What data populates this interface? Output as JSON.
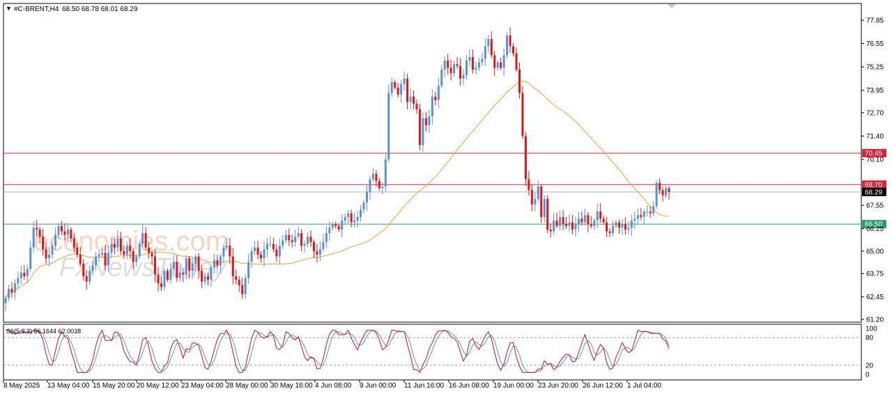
{
  "header": {
    "title_marker": "▼",
    "symbol": "#C-BRENT,H4",
    "ohlc": "68.50 68.78 68.01 68.29"
  },
  "watermark": {
    "line1": "economies.com",
    "line2": "FxNewsToday"
  },
  "colors": {
    "bull": "#5b8fd6",
    "bear": "#e01515",
    "ma": "#f0a030",
    "resistance": "#d6273a",
    "support": "#2f9e6e",
    "price_tag": "#000000",
    "stoch_main": "#d01010",
    "stoch_signal": "#5b8fd6"
  },
  "chart_data": [
    {
      "type": "candlestick",
      "symbol": "#C-BRENT",
      "timeframe": "H4",
      "last": {
        "open": 68.5,
        "high": 68.78,
        "low": 68.01,
        "close": 68.29
      },
      "y_ticks": [
        "77.85",
        "76.55",
        "75.25",
        "73.95",
        "72.70",
        "71.40",
        "70.10",
        "67.55",
        "66.25",
        "65.00",
        "63.75",
        "62.45",
        "61.20"
      ],
      "ylim": [
        61.2,
        77.85
      ],
      "x_ticks": [
        "8 May 2025",
        "13 May 04:00",
        "15 May 20:00",
        "20 May 12:00",
        "23 May 04:00",
        "28 May 00:00",
        "30 May 16:00",
        "4 Jun 08:00",
        "9 Jun 00:00",
        "11 Jun 16:00",
        "16 Jun 08:00",
        "19 Jun 00:00",
        "23 Jun 20:00",
        "26 Jun 12:00",
        "1 Jul 04:00"
      ],
      "levels": [
        {
          "label": "70.45",
          "value": 70.45,
          "color_key": "resistance"
        },
        {
          "label": "68.70",
          "value": 68.7,
          "color_key": "resistance"
        },
        {
          "label": "66.50",
          "value": 66.5,
          "color_key": "support"
        }
      ],
      "price_label": {
        "label": "68.29",
        "value": 68.29
      },
      "closes": [
        62.4,
        62.9,
        62.7,
        63.2,
        63.5,
        63.8,
        63.6,
        64.0,
        65.2,
        66.3,
        66.2,
        65.8,
        65.1,
        64.6,
        64.8,
        65.3,
        65.9,
        66.4,
        66.1,
        65.9,
        66.2,
        65.7,
        65.2,
        64.8,
        64.3,
        63.6,
        63.3,
        63.9,
        64.2,
        64.7,
        64.8,
        64.9,
        64.2,
        64.9,
        65.4,
        65.2,
        65.7,
        65.0,
        64.8,
        65.3,
        65.0,
        64.4,
        64.7,
        65.4,
        66.0,
        65.2,
        64.9,
        64.7,
        63.7,
        63.2,
        63.0,
        63.9,
        63.4,
        64.0,
        64.4,
        63.5,
        63.8,
        63.7,
        64.6,
        63.9,
        64.3,
        64.7,
        63.9,
        63.3,
        63.6,
        63.4,
        64.1,
        64.5,
        64.2,
        64.7,
        65.2,
        65.3,
        64.7,
        63.6,
        63.4,
        63.1,
        62.6,
        63.5,
        64.4,
        65.0,
        65.2,
        64.8,
        64.6,
        65.1,
        65.4,
        65.4,
        65.1,
        64.7,
        65.3,
        65.6,
        65.9,
        65.6,
        65.5,
        65.8,
        66.0,
        65.3,
        65.4,
        65.8,
        65.5,
        65.0,
        64.8,
        65.1,
        65.5,
        66.0,
        66.3,
        66.5,
        66.4,
        66.2,
        66.7,
        66.9,
        67.1,
        66.6,
        66.7,
        66.9,
        67.3,
        67.7,
        68.3,
        69.0,
        69.3,
        68.9,
        68.5,
        68.6,
        70.1,
        73.8,
        74.4,
        74.1,
        73.7,
        74.3,
        74.6,
        73.3,
        73.6,
        73.2,
        72.9,
        70.9,
        72.4,
        72.0,
        72.5,
        73.6,
        73.4,
        74.2,
        75.1,
        75.6,
        75.2,
        74.9,
        75.4,
        75.3,
        74.6,
        74.8,
        75.6,
        75.8,
        75.1,
        75.2,
        75.5,
        75.7,
        76.4,
        76.8,
        75.9,
        75.2,
        75.5,
        75.2,
        75.9,
        77.0,
        76.4,
        76.0,
        75.1,
        73.8,
        71.4,
        69.0,
        68.4,
        67.6,
        67.9,
        68.6,
        66.9,
        67.9,
        66.2,
        66.1,
        66.7,
        66.4,
        66.9,
        66.5,
        66.4,
        66.6,
        66.2,
        66.5,
        66.8,
        66.6,
        67.0,
        66.5,
        66.4,
        66.7,
        67.2,
        66.8,
        66.6,
        66.1,
        66.0,
        66.4,
        66.6,
        66.3,
        66.5,
        66.2,
        66.3,
        66.7,
        66.8,
        67.0,
        66.9,
        67.2,
        67.2,
        67.1,
        67.5,
        68.8,
        68.4,
        68.1,
        68.5,
        68.29
      ],
      "indicator_sma": {
        "label": "SMA",
        "color_key": "ma"
      },
      "stochastic": {
        "label": "S6(5,3,3) 56.1644 62.0038",
        "main": 56.1644,
        "signal": 62.0038,
        "levels": [
          80,
          20
        ],
        "ylim": [
          0,
          100
        ],
        "y_ticks": [
          "100",
          "80",
          "20",
          "0"
        ]
      }
    }
  ]
}
